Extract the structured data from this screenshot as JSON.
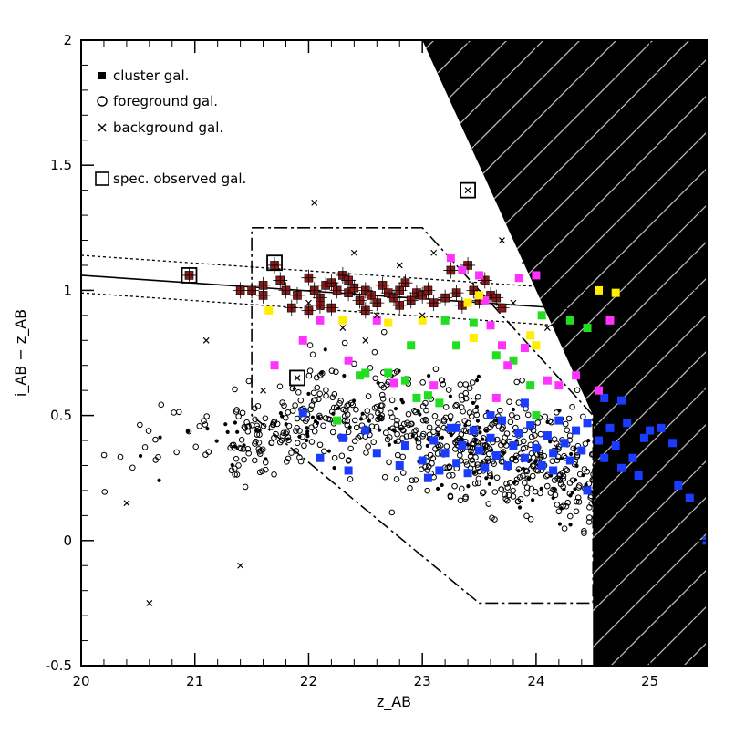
{
  "chart_data": {
    "type": "scatter",
    "xlabel": "z_AB",
    "ylabel": "i_AB − z_AB",
    "xlim": [
      20,
      25.5
    ],
    "ylim": [
      -0.5,
      2
    ],
    "x_ticks": [
      "20",
      "21",
      "22",
      "23",
      "24",
      "25"
    ],
    "y_ticks": [
      "-0.5",
      "0",
      "0.5",
      "1",
      "1.5",
      "2"
    ],
    "x_tick_values": [
      20,
      21,
      22,
      23,
      24,
      25
    ],
    "y_tick_values": [
      -0.5,
      0,
      0.5,
      1,
      1.5,
      2
    ],
    "legend": {
      "placement": "top-left",
      "entries": [
        {
          "symbol": "filled-square",
          "label": "cluster gal."
        },
        {
          "symbol": "open-circle",
          "label": "foreground gal."
        },
        {
          "symbol": "cross",
          "label": "background gal."
        },
        {
          "symbol": "open-square",
          "label": "spec. observed gal."
        }
      ]
    },
    "colors": {
      "cluster": "#8b1a1a",
      "blue": "#1a3cff",
      "green": "#22dd22",
      "magenta": "#ff33ff",
      "yellow": "#ffee00",
      "background_region": "#000000"
    },
    "incompleteness_region": {
      "description": "black hatched area",
      "boundary_x": [
        23.0,
        24.0,
        24.3,
        24.5,
        24.5,
        25.5,
        25.5
      ],
      "boundary_y": [
        2.0,
        1.0,
        0.7,
        0.5,
        -0.5,
        -0.5,
        2.0
      ]
    },
    "selection_polygon": {
      "x": [
        21.5,
        23.0,
        24.5,
        24.5,
        23.5,
        21.5,
        21.5
      ],
      "y": [
        1.25,
        1.25,
        0.5,
        -0.25,
        -0.25,
        0.5,
        1.25
      ]
    },
    "red_sequence": {
      "line": {
        "x": [
          20,
          24.5
        ],
        "y": [
          1.06,
          0.92
        ]
      },
      "upper": {
        "x": [
          20,
          24.5
        ],
        "y": [
          1.14,
          1.0
        ]
      },
      "lower": {
        "x": [
          20,
          24.5
        ],
        "y": [
          0.99,
          0.85
        ]
      }
    },
    "series": [
      {
        "name": "cluster gal.",
        "marker": "filled-square",
        "color": "#8b1a1a",
        "points": [
          [
            20.95,
            1.06
          ],
          [
            21.7,
            1.1
          ],
          [
            21.4,
            1.0
          ],
          [
            21.5,
            1.0
          ],
          [
            21.6,
            1.02
          ],
          [
            21.75,
            1.04
          ],
          [
            21.8,
            1.0
          ],
          [
            21.9,
            0.98
          ],
          [
            22.0,
            1.05
          ],
          [
            22.05,
            1.0
          ],
          [
            22.1,
            0.97
          ],
          [
            22.15,
            1.02
          ],
          [
            22.2,
            1.03
          ],
          [
            22.25,
            1.0
          ],
          [
            22.3,
            1.06
          ],
          [
            22.35,
            0.99
          ],
          [
            22.4,
            1.01
          ],
          [
            22.45,
            0.96
          ],
          [
            22.5,
            1.0
          ],
          [
            22.55,
            0.98
          ],
          [
            22.6,
            0.95
          ],
          [
            22.65,
            1.02
          ],
          [
            22.7,
            0.99
          ],
          [
            22.75,
            0.97
          ],
          [
            22.8,
            1.0
          ],
          [
            22.85,
            1.03
          ],
          [
            22.9,
            0.96
          ],
          [
            22.95,
            0.99
          ],
          [
            23.0,
            0.98
          ],
          [
            23.05,
            1.0
          ],
          [
            23.1,
            0.95
          ],
          [
            23.2,
            0.97
          ],
          [
            23.3,
            0.99
          ],
          [
            23.35,
            0.94
          ],
          [
            23.45,
            1.0
          ],
          [
            23.5,
            0.96
          ],
          [
            23.6,
            0.98
          ],
          [
            23.7,
            0.93
          ],
          [
            22.0,
            0.92
          ],
          [
            22.2,
            0.93
          ],
          [
            22.5,
            0.92
          ],
          [
            22.8,
            0.94
          ],
          [
            21.85,
            0.93
          ],
          [
            23.25,
            1.08
          ],
          [
            23.4,
            1.1
          ],
          [
            23.55,
            1.04
          ],
          [
            23.65,
            0.97
          ],
          [
            22.35,
            1.04
          ],
          [
            21.6,
            0.98
          ],
          [
            22.1,
            0.94
          ]
        ]
      },
      {
        "name": "blue",
        "marker": "filled-square",
        "color": "#1a3cff",
        "points": [
          [
            21.95,
            0.51
          ],
          [
            22.1,
            0.33
          ],
          [
            22.3,
            0.41
          ],
          [
            22.35,
            0.28
          ],
          [
            22.5,
            0.44
          ],
          [
            22.8,
            0.3
          ],
          [
            22.85,
            0.38
          ],
          [
            23.0,
            0.32
          ],
          [
            23.05,
            0.25
          ],
          [
            23.1,
            0.4
          ],
          [
            23.15,
            0.28
          ],
          [
            23.2,
            0.35
          ],
          [
            23.25,
            0.45
          ],
          [
            23.3,
            0.31
          ],
          [
            23.35,
            0.38
          ],
          [
            23.4,
            0.27
          ],
          [
            23.45,
            0.44
          ],
          [
            23.5,
            0.36
          ],
          [
            23.55,
            0.29
          ],
          [
            23.6,
            0.41
          ],
          [
            23.65,
            0.34
          ],
          [
            23.7,
            0.48
          ],
          [
            23.75,
            0.3
          ],
          [
            23.8,
            0.38
          ],
          [
            23.85,
            0.43
          ],
          [
            23.9,
            0.33
          ],
          [
            23.95,
            0.46
          ],
          [
            24.0,
            0.37
          ],
          [
            24.05,
            0.3
          ],
          [
            24.1,
            0.42
          ],
          [
            24.15,
            0.35
          ],
          [
            24.2,
            0.48
          ],
          [
            24.25,
            0.39
          ],
          [
            24.3,
            0.32
          ],
          [
            24.35,
            0.44
          ],
          [
            24.4,
            0.36
          ],
          [
            24.45,
            0.47
          ],
          [
            24.55,
            0.4
          ],
          [
            24.6,
            0.33
          ],
          [
            24.65,
            0.45
          ],
          [
            24.7,
            0.38
          ],
          [
            24.75,
            0.29
          ],
          [
            24.8,
            0.47
          ],
          [
            24.85,
            0.33
          ],
          [
            24.9,
            0.26
          ],
          [
            24.95,
            0.41
          ],
          [
            25.0,
            0.44
          ],
          [
            25.1,
            0.45
          ],
          [
            25.2,
            0.39
          ],
          [
            25.25,
            0.22
          ],
          [
            25.35,
            0.17
          ],
          [
            25.5,
            0.0
          ],
          [
            24.6,
            0.57
          ],
          [
            24.75,
            0.56
          ],
          [
            24.45,
            0.2
          ],
          [
            23.9,
            0.55
          ],
          [
            23.6,
            0.5
          ],
          [
            23.3,
            0.45
          ],
          [
            22.6,
            0.35
          ],
          [
            24.15,
            0.28
          ]
        ]
      },
      {
        "name": "green",
        "marker": "filled-square",
        "color": "#22dd22",
        "points": [
          [
            22.25,
            0.48
          ],
          [
            22.45,
            0.66
          ],
          [
            22.5,
            0.67
          ],
          [
            22.7,
            0.67
          ],
          [
            22.85,
            0.64
          ],
          [
            22.95,
            0.57
          ],
          [
            23.05,
            0.58
          ],
          [
            23.15,
            0.55
          ],
          [
            23.3,
            0.78
          ],
          [
            23.45,
            0.87
          ],
          [
            23.65,
            0.74
          ],
          [
            23.8,
            0.72
          ],
          [
            23.95,
            0.62
          ],
          [
            24.05,
            0.9
          ],
          [
            24.3,
            0.88
          ],
          [
            24.45,
            0.85
          ],
          [
            24.0,
            0.5
          ],
          [
            23.2,
            0.88
          ],
          [
            22.9,
            0.78
          ]
        ]
      },
      {
        "name": "magenta",
        "marker": "filled-square",
        "color": "#ff33ff",
        "points": [
          [
            21.7,
            0.7
          ],
          [
            21.95,
            0.8
          ],
          [
            22.1,
            0.88
          ],
          [
            22.35,
            0.72
          ],
          [
            22.6,
            0.88
          ],
          [
            22.75,
            0.63
          ],
          [
            23.1,
            0.62
          ],
          [
            23.25,
            1.13
          ],
          [
            23.35,
            1.08
          ],
          [
            23.5,
            1.06
          ],
          [
            23.55,
            0.96
          ],
          [
            23.6,
            0.86
          ],
          [
            23.7,
            0.78
          ],
          [
            23.75,
            0.7
          ],
          [
            23.85,
            1.05
          ],
          [
            23.9,
            0.77
          ],
          [
            24.0,
            1.06
          ],
          [
            24.1,
            0.64
          ],
          [
            24.2,
            0.62
          ],
          [
            24.35,
            0.66
          ],
          [
            24.55,
            0.6
          ],
          [
            24.65,
            0.88
          ],
          [
            23.65,
            0.57
          ]
        ]
      },
      {
        "name": "yellow",
        "marker": "filled-square",
        "color": "#ffee00",
        "points": [
          [
            21.65,
            0.92
          ],
          [
            22.3,
            0.88
          ],
          [
            22.7,
            0.87
          ],
          [
            23.0,
            0.88
          ],
          [
            23.45,
            0.81
          ],
          [
            23.5,
            0.98
          ],
          [
            24.0,
            0.78
          ],
          [
            24.55,
            1.0
          ],
          [
            24.7,
            0.99
          ],
          [
            23.95,
            0.82
          ],
          [
            23.4,
            0.95
          ]
        ]
      },
      {
        "name": "spec. observed",
        "marker": "open-square",
        "color": "#000000",
        "points": [
          [
            20.95,
            1.06
          ],
          [
            21.7,
            1.11
          ],
          [
            21.9,
            0.65
          ],
          [
            23.4,
            1.4
          ]
        ]
      },
      {
        "name": "background gal.",
        "marker": "cross",
        "color": "#000000",
        "points": [
          [
            20.6,
            -0.25
          ],
          [
            21.4,
            -0.1
          ],
          [
            21.1,
            0.8
          ],
          [
            21.6,
            0.6
          ],
          [
            22.0,
            0.95
          ],
          [
            22.05,
            1.35
          ],
          [
            22.6,
            0.9
          ],
          [
            23.1,
            1.15
          ],
          [
            23.7,
            1.2
          ],
          [
            23.9,
            1.12
          ],
          [
            24.2,
            1.05
          ],
          [
            22.4,
            1.15
          ],
          [
            22.8,
            1.1
          ],
          [
            23.4,
            1.4
          ],
          [
            20.4,
            0.15
          ],
          [
            22.5,
            0.8
          ],
          [
            23.0,
            0.9
          ],
          [
            23.8,
            0.95
          ],
          [
            24.1,
            0.85
          ],
          [
            22.3,
            0.85
          ],
          [
            21.9,
            0.65
          ]
        ]
      }
    ],
    "foreground_cloud": {
      "name": "foreground gal.",
      "marker": "open-circle",
      "approx_count": 900,
      "seed": 11
    }
  }
}
